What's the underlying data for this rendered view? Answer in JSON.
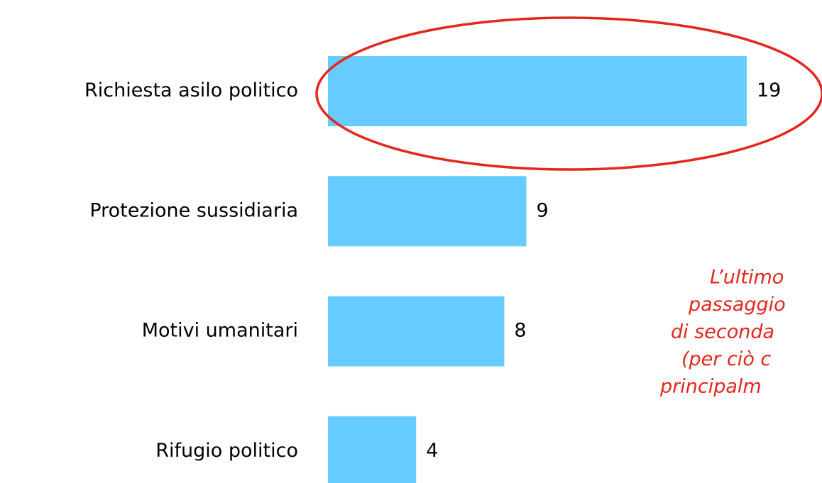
{
  "chart_data": {
    "type": "bar",
    "orientation": "horizontal",
    "categories": [
      "Richiesta asilo politico",
      "Protezione sussidiaria",
      "Motivi umanitari",
      "Rifugio politico"
    ],
    "values": [
      19,
      9,
      8,
      4
    ],
    "color": "#66ccff",
    "highlight_color": "#e4261c",
    "annotation": [
      "L’ultimo",
      "passaggio",
      "di seconda",
      "(per ciò c",
      "principalm"
    ]
  }
}
